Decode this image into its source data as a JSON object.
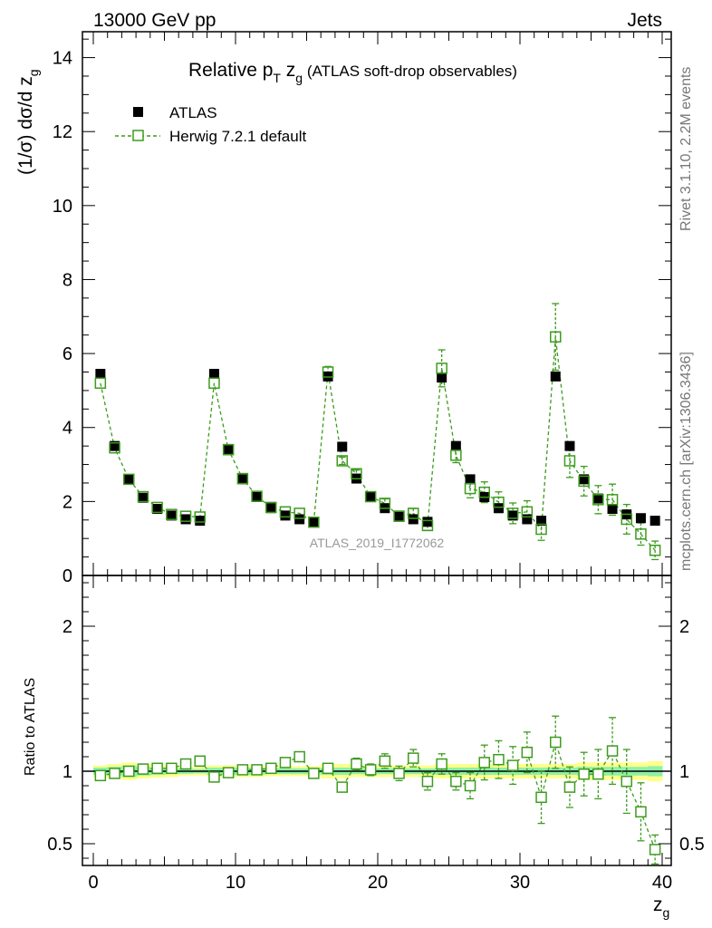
{
  "header": {
    "left": "13000 GeV pp",
    "right": "Jets"
  },
  "side_text": {
    "top": "Rivet 3.1.10,  2.2M events",
    "bottom": "mcplots.cern.ch [arXiv:1306.3436]"
  },
  "colors": {
    "atlas": "#000000",
    "herwig": "#3d9c1e",
    "band_inner": "#8ff0a8",
    "band_outer": "#ffff8a"
  },
  "chart_data": {
    "type": "scatter",
    "title_main": "Relative p",
    "title_sub_T": "T",
    "title_z": " z",
    "title_sub_g": "g",
    "title_rest": " (ATLAS soft-drop observables)",
    "analysis_label": "ATLAS_2019_I1772062",
    "xlabel": "z",
    "xlabel_sub": "g",
    "ylabel_main": "(1/σ) dσ/d z",
    "ylabel_sub": "g",
    "ratio_ylabel": "Ratio to ATLAS",
    "xlim": [
      -1,
      41
    ],
    "ylim": [
      0,
      14.7
    ],
    "ratio_ylim": [
      0.35,
      2.35
    ],
    "x_ticks": [
      0,
      10,
      20,
      30,
      40
    ],
    "x_tick_labels": [
      "0",
      "10",
      "20",
      "30",
      "40"
    ],
    "y_ticks": [
      0,
      2,
      4,
      6,
      8,
      10,
      12,
      14
    ],
    "y_tick_labels": [
      "0",
      "2",
      "4",
      "6",
      "8",
      "10",
      "12",
      "14"
    ],
    "ratio_ticks": [
      0.5,
      1,
      2
    ],
    "ratio_tick_labels": [
      "0.5",
      "1",
      "2"
    ],
    "legend": [
      "ATLAS",
      "Herwig 7.2.1 default"
    ],
    "series": [
      {
        "name": "ATLAS",
        "x": [
          0.5,
          1.5,
          2.5,
          3.5,
          4.5,
          5.5,
          6.5,
          7.5,
          8.5,
          9.5,
          10.5,
          11.5,
          12.5,
          13.5,
          14.5,
          15.5,
          16.5,
          17.5,
          18.5,
          19.5,
          20.5,
          21.5,
          22.5,
          23.5,
          24.5,
          25.5,
          26.5,
          27.5,
          28.5,
          29.5,
          30.5,
          31.5,
          32.5,
          33.5,
          34.5,
          35.5,
          36.5,
          37.5,
          38.5,
          39.5
        ],
        "values": [
          5.45,
          3.5,
          2.6,
          2.1,
          1.8,
          1.62,
          1.52,
          1.48,
          5.45,
          3.42,
          2.6,
          2.12,
          1.82,
          1.62,
          1.52,
          1.45,
          5.38,
          3.48,
          2.62,
          2.12,
          1.82,
          1.62,
          1.52,
          1.45,
          5.35,
          3.5,
          2.6,
          2.12,
          1.82,
          1.62,
          1.52,
          1.48,
          5.38,
          3.5,
          2.6,
          2.08,
          1.8,
          1.65,
          1.55,
          1.48
        ]
      },
      {
        "name": "Herwig 7.2.1 default",
        "x": [
          0.5,
          1.5,
          2.5,
          3.5,
          4.5,
          5.5,
          6.5,
          7.5,
          8.5,
          9.5,
          10.5,
          11.5,
          12.5,
          13.5,
          14.5,
          15.5,
          16.5,
          17.5,
          18.5,
          19.5,
          20.5,
          21.5,
          22.5,
          23.5,
          24.5,
          25.5,
          26.5,
          27.5,
          28.5,
          29.5,
          30.5,
          31.5,
          32.5,
          33.5,
          34.5,
          35.5,
          36.5,
          37.5,
          38.5,
          39.5
        ],
        "values": [
          5.2,
          3.45,
          2.6,
          2.13,
          1.84,
          1.65,
          1.6,
          1.58,
          5.2,
          3.4,
          2.62,
          2.14,
          1.84,
          1.72,
          1.68,
          1.44,
          5.5,
          3.1,
          2.75,
          2.13,
          1.95,
          1.6,
          1.68,
          1.35,
          5.6,
          3.25,
          2.35,
          2.25,
          1.98,
          1.68,
          1.72,
          1.25,
          6.45,
          3.1,
          2.55,
          2.05,
          2.05,
          1.52,
          1.12,
          0.68
        ],
        "errors": [
          0.03,
          0.03,
          0.03,
          0.03,
          0.03,
          0.03,
          0.03,
          0.04,
          0.05,
          0.05,
          0.05,
          0.05,
          0.05,
          0.05,
          0.06,
          0.06,
          0.15,
          0.1,
          0.1,
          0.1,
          0.12,
          0.12,
          0.13,
          0.13,
          0.5,
          0.2,
          0.25,
          0.28,
          0.28,
          0.28,
          0.3,
          0.3,
          0.9,
          0.45,
          0.4,
          0.38,
          0.42,
          0.4,
          0.3,
          0.25
        ]
      }
    ],
    "ratio": {
      "x": [
        0.5,
        1.5,
        2.5,
        3.5,
        4.5,
        5.5,
        6.5,
        7.5,
        8.5,
        9.5,
        10.5,
        11.5,
        12.5,
        13.5,
        14.5,
        15.5,
        16.5,
        17.5,
        18.5,
        19.5,
        20.5,
        21.5,
        22.5,
        23.5,
        24.5,
        25.5,
        26.5,
        27.5,
        28.5,
        29.5,
        30.5,
        31.5,
        32.5,
        33.5,
        34.5,
        35.5,
        36.5,
        37.5,
        38.5,
        39.5
      ],
      "values": [
        0.97,
        0.985,
        1.0,
        1.015,
        1.02,
        1.02,
        1.05,
        1.07,
        0.96,
        0.99,
        1.01,
        1.01,
        1.02,
        1.06,
        1.1,
        0.985,
        1.02,
        0.89,
        1.05,
        1.01,
        1.07,
        0.985,
        1.09,
        0.93,
        1.05,
        0.93,
        0.9,
        1.06,
        1.08,
        1.04,
        1.13,
        0.82,
        1.2,
        0.89,
        0.98,
        0.98,
        1.14,
        0.93,
        0.72,
        0.46
      ],
      "errors": [
        0.01,
        0.01,
        0.01,
        0.01,
        0.01,
        0.01,
        0.01,
        0.01,
        0.01,
        0.01,
        0.01,
        0.01,
        0.01,
        0.015,
        0.02,
        0.02,
        0.03,
        0.03,
        0.04,
        0.04,
        0.05,
        0.05,
        0.06,
        0.06,
        0.07,
        0.06,
        0.09,
        0.12,
        0.13,
        0.13,
        0.14,
        0.18,
        0.18,
        0.14,
        0.15,
        0.17,
        0.23,
        0.22,
        0.2,
        0.1
      ],
      "band_inner": [
        0.025,
        0.03,
        0.04,
        0.03,
        0.025,
        0.02,
        0.018,
        0.015,
        0.025,
        0.025,
        0.025,
        0.025,
        0.02,
        0.02,
        0.02,
        0.02,
        0.025,
        0.025,
        0.02,
        0.02,
        0.02,
        0.02,
        0.02,
        0.02,
        0.025,
        0.025,
        0.025,
        0.025,
        0.025,
        0.025,
        0.025,
        0.025,
        0.025,
        0.025,
        0.03,
        0.03,
        0.03,
        0.03,
        0.03,
        0.035
      ],
      "band_outer": [
        0.04,
        0.05,
        0.06,
        0.05,
        0.045,
        0.04,
        0.03,
        0.03,
        0.04,
        0.04,
        0.04,
        0.04,
        0.035,
        0.035,
        0.035,
        0.035,
        0.05,
        0.05,
        0.04,
        0.04,
        0.04,
        0.04,
        0.04,
        0.04,
        0.05,
        0.05,
        0.05,
        0.05,
        0.05,
        0.05,
        0.05,
        0.05,
        0.05,
        0.05,
        0.06,
        0.06,
        0.06,
        0.06,
        0.06,
        0.07
      ]
    }
  }
}
